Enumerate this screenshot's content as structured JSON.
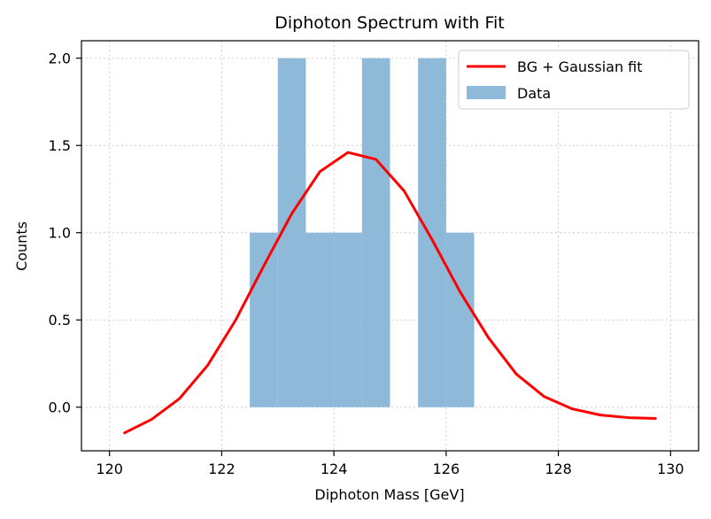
{
  "chart_data": {
    "type": "bar",
    "title": "Diphoton Spectrum with Fit",
    "xlabel": "Diphoton Mass [GeV]",
    "ylabel": "Counts",
    "xlim": [
      119.5,
      130.5
    ],
    "ylim": [
      -0.25,
      2.1
    ],
    "x_ticks": [
      120,
      122,
      124,
      126,
      128,
      130
    ],
    "y_ticks": [
      0.0,
      0.5,
      1.0,
      1.5,
      2.0
    ],
    "x_tick_labels": [
      "120",
      "122",
      "124",
      "126",
      "128",
      "130"
    ],
    "y_tick_labels": [
      "0.0",
      "0.5",
      "1.0",
      "1.5",
      "2.0"
    ],
    "grid": true,
    "legend_position": "top-right",
    "series": [
      {
        "name": "Data",
        "type": "histogram",
        "color": "#8fb9d9",
        "bin_edges": [
          122.5,
          123.0,
          123.5,
          124.0,
          124.5,
          125.0,
          125.5,
          126.0,
          126.5
        ],
        "counts": [
          1,
          2,
          1,
          1,
          2,
          0,
          2,
          1
        ]
      },
      {
        "name": "BG + Gaussian fit",
        "type": "line",
        "color": "#ff0000",
        "x": [
          120.25,
          120.75,
          121.25,
          121.75,
          122.25,
          122.75,
          123.25,
          123.75,
          124.25,
          124.75,
          125.25,
          125.75,
          126.25,
          126.75,
          127.25,
          127.75,
          128.25,
          128.75,
          129.25,
          129.75
        ],
        "y": [
          -0.15,
          -0.07,
          0.05,
          0.24,
          0.5,
          0.81,
          1.11,
          1.35,
          1.46,
          1.42,
          1.24,
          0.96,
          0.66,
          0.4,
          0.19,
          0.06,
          -0.01,
          -0.045,
          -0.06,
          -0.065
        ]
      }
    ]
  }
}
